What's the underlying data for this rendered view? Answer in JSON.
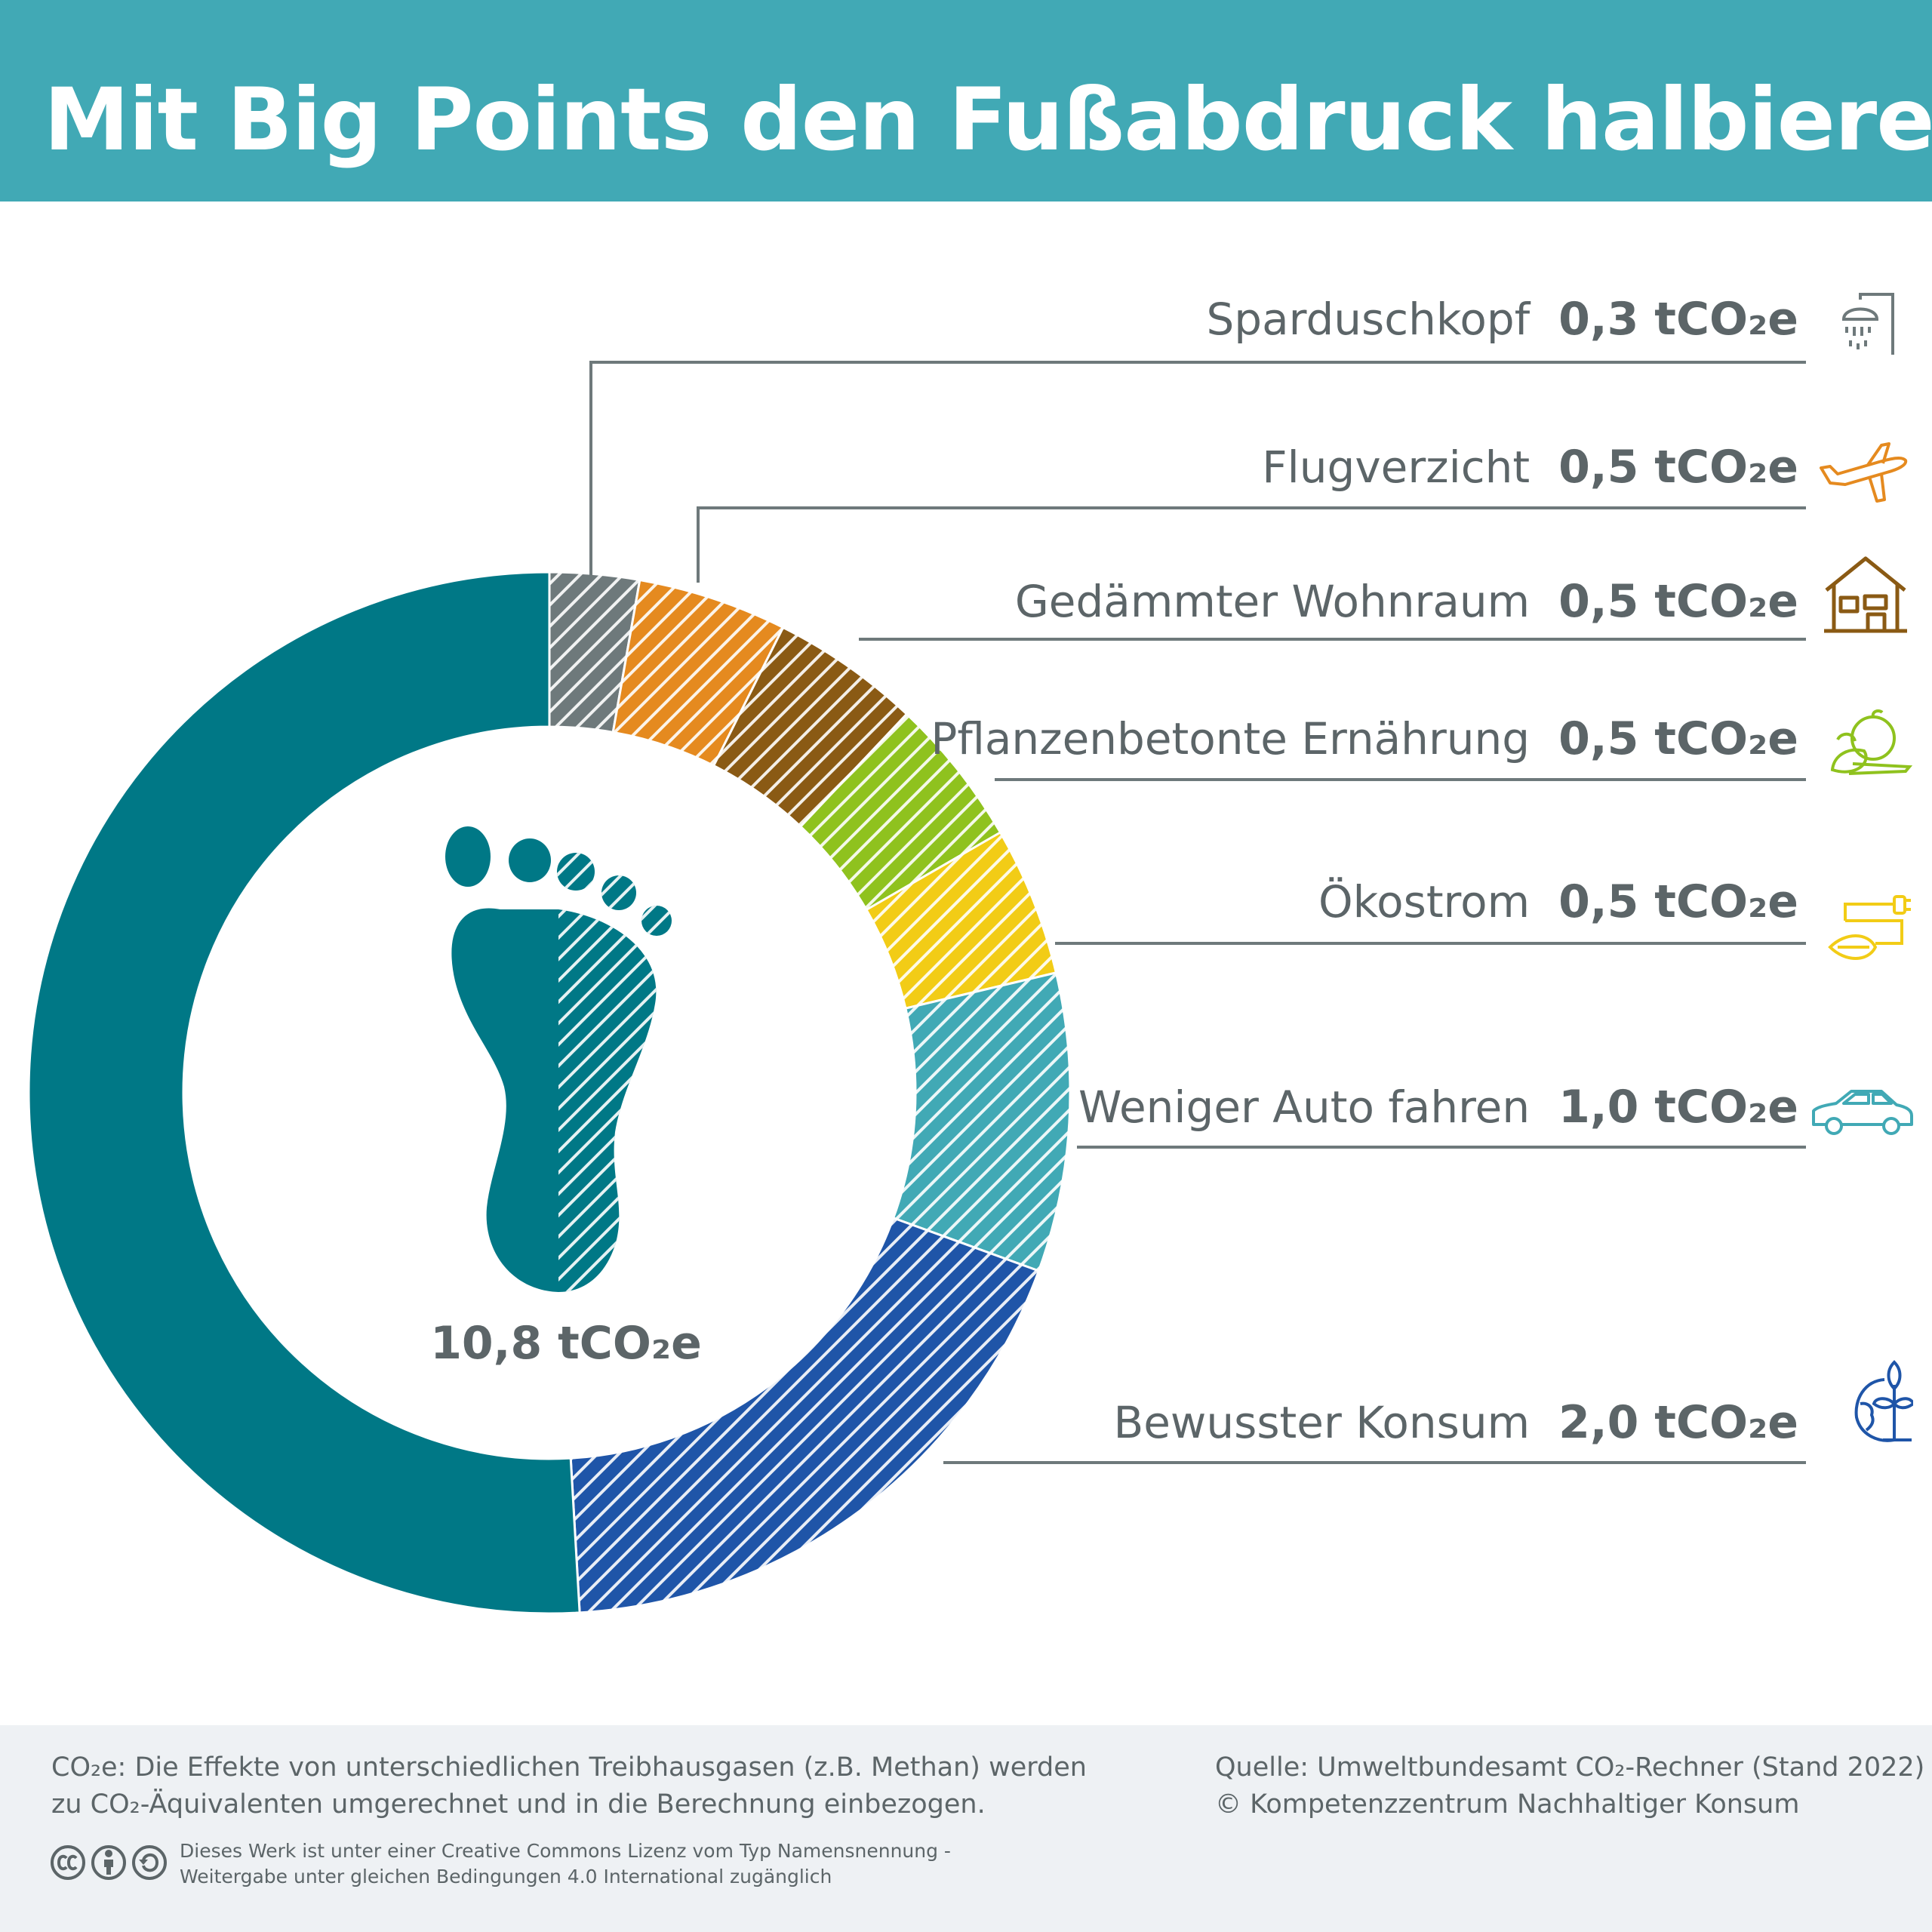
{
  "header": {
    "title": "Mit Big Points den Fußabdruck halbieren"
  },
  "colors": {
    "header_bg": "#41a9b5",
    "main": "#007886",
    "text": "#5c6568",
    "footer_bg": "#eef1f4"
  },
  "chart_data": {
    "type": "donut",
    "unit": "tCO₂e",
    "total": {
      "value": 10.8,
      "label": "10,8 tCO₂e"
    },
    "categories": [
      "Sparduschkopf",
      "Flugverzicht",
      "Gedämmter Wohnraum",
      "Pflanzenbetonte Ernährung",
      "Ökostrom",
      "Weniger Auto fahren",
      "Bewusster Konsum"
    ],
    "values": [
      0.3,
      0.5,
      0.5,
      0.5,
      0.5,
      1.0,
      2.0
    ],
    "value_labels": [
      "0,3 tCO₂e",
      "0,5 tCO₂e",
      "0,5 tCO₂e",
      "0,5 tCO₂e",
      "0,5 tCO₂e",
      "1,0 tCO₂e",
      "2,0 tCO₂e"
    ],
    "colors": [
      "#6e797b",
      "#e58a1f",
      "#8a5a14",
      "#8fc21e",
      "#f2cc16",
      "#41a9b5",
      "#1f55a8"
    ],
    "icons": [
      "shower-icon",
      "airplane-icon",
      "house-icon",
      "vegetables-icon",
      "eco-plug-icon",
      "car-icon",
      "globe-plant-icon"
    ],
    "remaining": {
      "value": 5.5,
      "color": "#007886"
    }
  },
  "footer": {
    "note_line1": "CO₂e: Die Effekte von unterschiedlichen Treibhausgasen (z.B. Methan) werden",
    "note_line2": "zu CO₂-Äquivalenten umgerechnet und in die Berechnung einbezogen.",
    "source_line1": "Quelle: Umweltbundesamt CO₂-Rechner (Stand 2022)",
    "source_line2": "© Kompetenzzentrum Nachhaltiger Konsum",
    "license_line1": "Dieses Werk ist unter einer Creative Commons Lizenz vom Typ Namensnennung -",
    "license_line2": "Weitergabe unter gleichen Bedingungen 4.0 International zugänglich"
  }
}
